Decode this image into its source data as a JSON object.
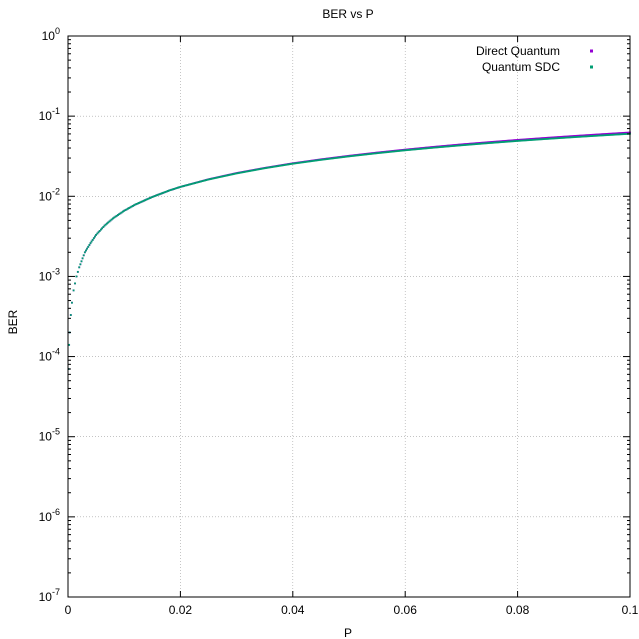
{
  "chart_data": {
    "type": "scatter",
    "title": "BER vs P",
    "xlabel": "P",
    "ylabel": "BER",
    "xlim": [
      0,
      0.1
    ],
    "ylim": [
      1e-07,
      1
    ],
    "y_scale": "log",
    "grid": true,
    "legend_position": "top-right",
    "x_ticks": [
      {
        "value": 0,
        "label": "0"
      },
      {
        "value": 0.02,
        "label": "0.02"
      },
      {
        "value": 0.04,
        "label": "0.04"
      },
      {
        "value": 0.06,
        "label": "0.06"
      },
      {
        "value": 0.08,
        "label": "0.08"
      },
      {
        "value": 0.1,
        "label": "0.1"
      }
    ],
    "y_ticks": [
      {
        "value": 1e-07,
        "base": "10",
        "exp": "-7"
      },
      {
        "value": 1e-06,
        "base": "10",
        "exp": "-6"
      },
      {
        "value": 1e-05,
        "base": "10",
        "exp": "-5"
      },
      {
        "value": 0.0001,
        "base": "10",
        "exp": "-4"
      },
      {
        "value": 0.001,
        "base": "10",
        "exp": "-3"
      },
      {
        "value": 0.01,
        "base": "10",
        "exp": "-2"
      },
      {
        "value": 0.1,
        "base": "10",
        "exp": "-1"
      },
      {
        "value": 1,
        "base": "10",
        "exp": "0"
      }
    ],
    "series": [
      {
        "name": "Direct Quantum",
        "color": "#9400d3",
        "marker": "dot",
        "x": [
          0.0001,
          0.0002,
          0.0003,
          0.0005,
          0.0007,
          0.001,
          0.0015,
          0.002,
          0.003,
          0.004,
          0.005,
          0.0065,
          0.008,
          0.01,
          0.012,
          0.015,
          0.018,
          0.02,
          0.025,
          0.03,
          0.035,
          0.04,
          0.045,
          0.05,
          0.055,
          0.06,
          0.065,
          0.07,
          0.075,
          0.08,
          0.085,
          0.09,
          0.095,
          0.1
        ],
        "y": [
          7e-05,
          0.00014,
          0.0002,
          0.00033,
          0.00047,
          0.00067,
          0.001,
          0.0013,
          0.002,
          0.0026,
          0.0033,
          0.0043,
          0.0053,
          0.0066,
          0.0079,
          0.0098,
          0.0118,
          0.0131,
          0.0163,
          0.0195,
          0.0226,
          0.0258,
          0.0289,
          0.032,
          0.0351,
          0.0382,
          0.0413,
          0.0444,
          0.0474,
          0.0505,
          0.0535,
          0.0565,
          0.0595,
          0.0625
        ]
      },
      {
        "name": "Quantum SDC",
        "color": "#009e73",
        "marker": "dot",
        "x": [
          0.0001,
          0.0002,
          0.0003,
          0.0005,
          0.0007,
          0.001,
          0.0015,
          0.002,
          0.003,
          0.004,
          0.005,
          0.0065,
          0.008,
          0.01,
          0.012,
          0.015,
          0.018,
          0.02,
          0.025,
          0.03,
          0.035,
          0.04,
          0.045,
          0.05,
          0.055,
          0.06,
          0.065,
          0.07,
          0.075,
          0.08,
          0.085,
          0.09,
          0.095,
          0.1
        ],
        "y": [
          7e-05,
          0.00014,
          0.0002,
          0.00033,
          0.00047,
          0.00067,
          0.001,
          0.0013,
          0.002,
          0.0026,
          0.0033,
          0.0043,
          0.0053,
          0.0066,
          0.0079,
          0.0098,
          0.0118,
          0.0131,
          0.0162,
          0.0193,
          0.0224,
          0.0255,
          0.0285,
          0.0315,
          0.0345,
          0.0375,
          0.0404,
          0.0433,
          0.0462,
          0.0491,
          0.0519,
          0.0547,
          0.0575,
          0.0603
        ]
      }
    ]
  }
}
